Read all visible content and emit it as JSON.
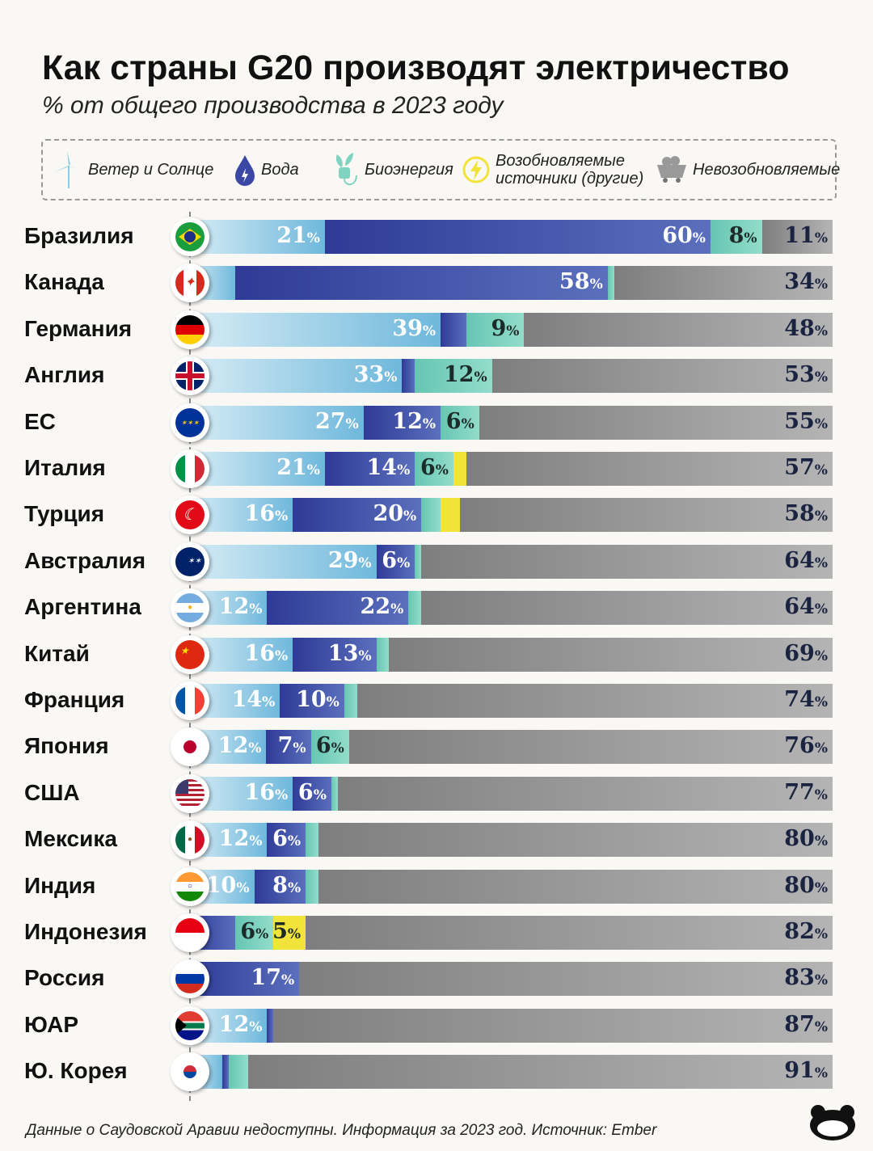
{
  "title": "Как страны G20 производят электричество",
  "subtitle": "% от общего производства в 2023 году",
  "footer": "Данные о Саудовской Аравии недоступны. Информация за 2023 год. Источник: Ember",
  "legend": [
    {
      "key": "wind",
      "label": "Ветер и Солнце",
      "icon": "wind-turbine-icon"
    },
    {
      "key": "hydro",
      "label": "Вода",
      "icon": "water-drop-icon"
    },
    {
      "key": "bio",
      "label": "Биоэнергия",
      "icon": "plant-plug-icon"
    },
    {
      "key": "other",
      "label": "Возобновляемые источники (другие)",
      "icon": "lightning-icon"
    },
    {
      "key": "non",
      "label": "Невозобновляемые",
      "icon": "coal-cart-icon"
    }
  ],
  "colors": {
    "wind": "#8ccbe6",
    "hydro": "#3b47a5",
    "bio": "#7fd3c0",
    "other": "#f2e33a",
    "non": "#9a9a9a"
  },
  "chart_data": {
    "type": "bar",
    "stacked": true,
    "orientation": "horizontal",
    "xlim": [
      0,
      100
    ],
    "title": "Как страны G20 производят электричество",
    "subtitle": "% от общего производства в 2023 году",
    "series_order": [
      "wind",
      "hydro",
      "bio",
      "other",
      "non"
    ],
    "rows": [
      {
        "country": "Бразилия",
        "flag": "br",
        "values": [
          21,
          60,
          8,
          0,
          11
        ],
        "labeled": [
          1,
          1,
          1,
          0,
          1
        ]
      },
      {
        "country": "Канада",
        "flag": "ca",
        "values": [
          7,
          58,
          1,
          0,
          34
        ],
        "labeled": [
          0,
          1,
          0,
          0,
          1
        ]
      },
      {
        "country": "Германия",
        "flag": "de",
        "values": [
          39,
          4,
          9,
          0,
          48
        ],
        "labeled": [
          1,
          0,
          1,
          0,
          1
        ]
      },
      {
        "country": "Англия",
        "flag": "gb",
        "values": [
          33,
          2,
          12,
          0,
          53
        ],
        "labeled": [
          1,
          0,
          1,
          0,
          1
        ]
      },
      {
        "country": "ЕС",
        "flag": "eu",
        "values": [
          27,
          12,
          6,
          0,
          55
        ],
        "labeled": [
          1,
          1,
          1,
          0,
          1
        ]
      },
      {
        "country": "Италия",
        "flag": "it",
        "values": [
          21,
          14,
          6,
          2,
          57
        ],
        "labeled": [
          1,
          1,
          1,
          0,
          1
        ]
      },
      {
        "country": "Турция",
        "flag": "tr",
        "values": [
          16,
          20,
          3,
          3,
          58
        ],
        "labeled": [
          1,
          1,
          0,
          0,
          1
        ]
      },
      {
        "country": "Австралия",
        "flag": "au",
        "values": [
          29,
          6,
          1,
          0,
          64
        ],
        "labeled": [
          1,
          1,
          0,
          0,
          1
        ]
      },
      {
        "country": "Аргентина",
        "flag": "ar",
        "values": [
          12,
          22,
          2,
          0,
          64
        ],
        "labeled": [
          1,
          1,
          0,
          0,
          1
        ]
      },
      {
        "country": "Китай",
        "flag": "cn",
        "values": [
          16,
          13,
          2,
          0,
          69
        ],
        "labeled": [
          1,
          1,
          0,
          0,
          1
        ]
      },
      {
        "country": "Франция",
        "flag": "fr",
        "values": [
          14,
          10,
          2,
          0,
          74
        ],
        "labeled": [
          1,
          1,
          0,
          0,
          1
        ]
      },
      {
        "country": "Япония",
        "flag": "jp",
        "values": [
          12,
          7,
          6,
          0,
          76
        ],
        "labeled": [
          1,
          1,
          1,
          0,
          1
        ]
      },
      {
        "country": "США",
        "flag": "us",
        "values": [
          16,
          6,
          1,
          0,
          77
        ],
        "labeled": [
          1,
          1,
          0,
          0,
          1
        ]
      },
      {
        "country": "Мексика",
        "flag": "mx",
        "values": [
          12,
          6,
          2,
          0,
          80
        ],
        "labeled": [
          1,
          1,
          0,
          0,
          1
        ]
      },
      {
        "country": "Индия",
        "flag": "in",
        "values": [
          10,
          8,
          2,
          0,
          80
        ],
        "labeled": [
          1,
          1,
          0,
          0,
          1
        ]
      },
      {
        "country": "Индонезия",
        "flag": "id",
        "values": [
          0,
          7,
          6,
          5,
          82
        ],
        "labeled": [
          0,
          0,
          1,
          1,
          1
        ]
      },
      {
        "country": "Россия",
        "flag": "ru",
        "values": [
          0,
          17,
          0,
          0,
          83
        ],
        "labeled": [
          0,
          1,
          0,
          0,
          1
        ]
      },
      {
        "country": "ЮАР",
        "flag": "za",
        "values": [
          12,
          1,
          0,
          0,
          87
        ],
        "labeled": [
          1,
          0,
          0,
          0,
          1
        ]
      },
      {
        "country": "Ю. Корея",
        "flag": "kr",
        "values": [
          5,
          1,
          3,
          0,
          91
        ],
        "labeled": [
          0,
          0,
          0,
          0,
          1
        ]
      }
    ]
  }
}
